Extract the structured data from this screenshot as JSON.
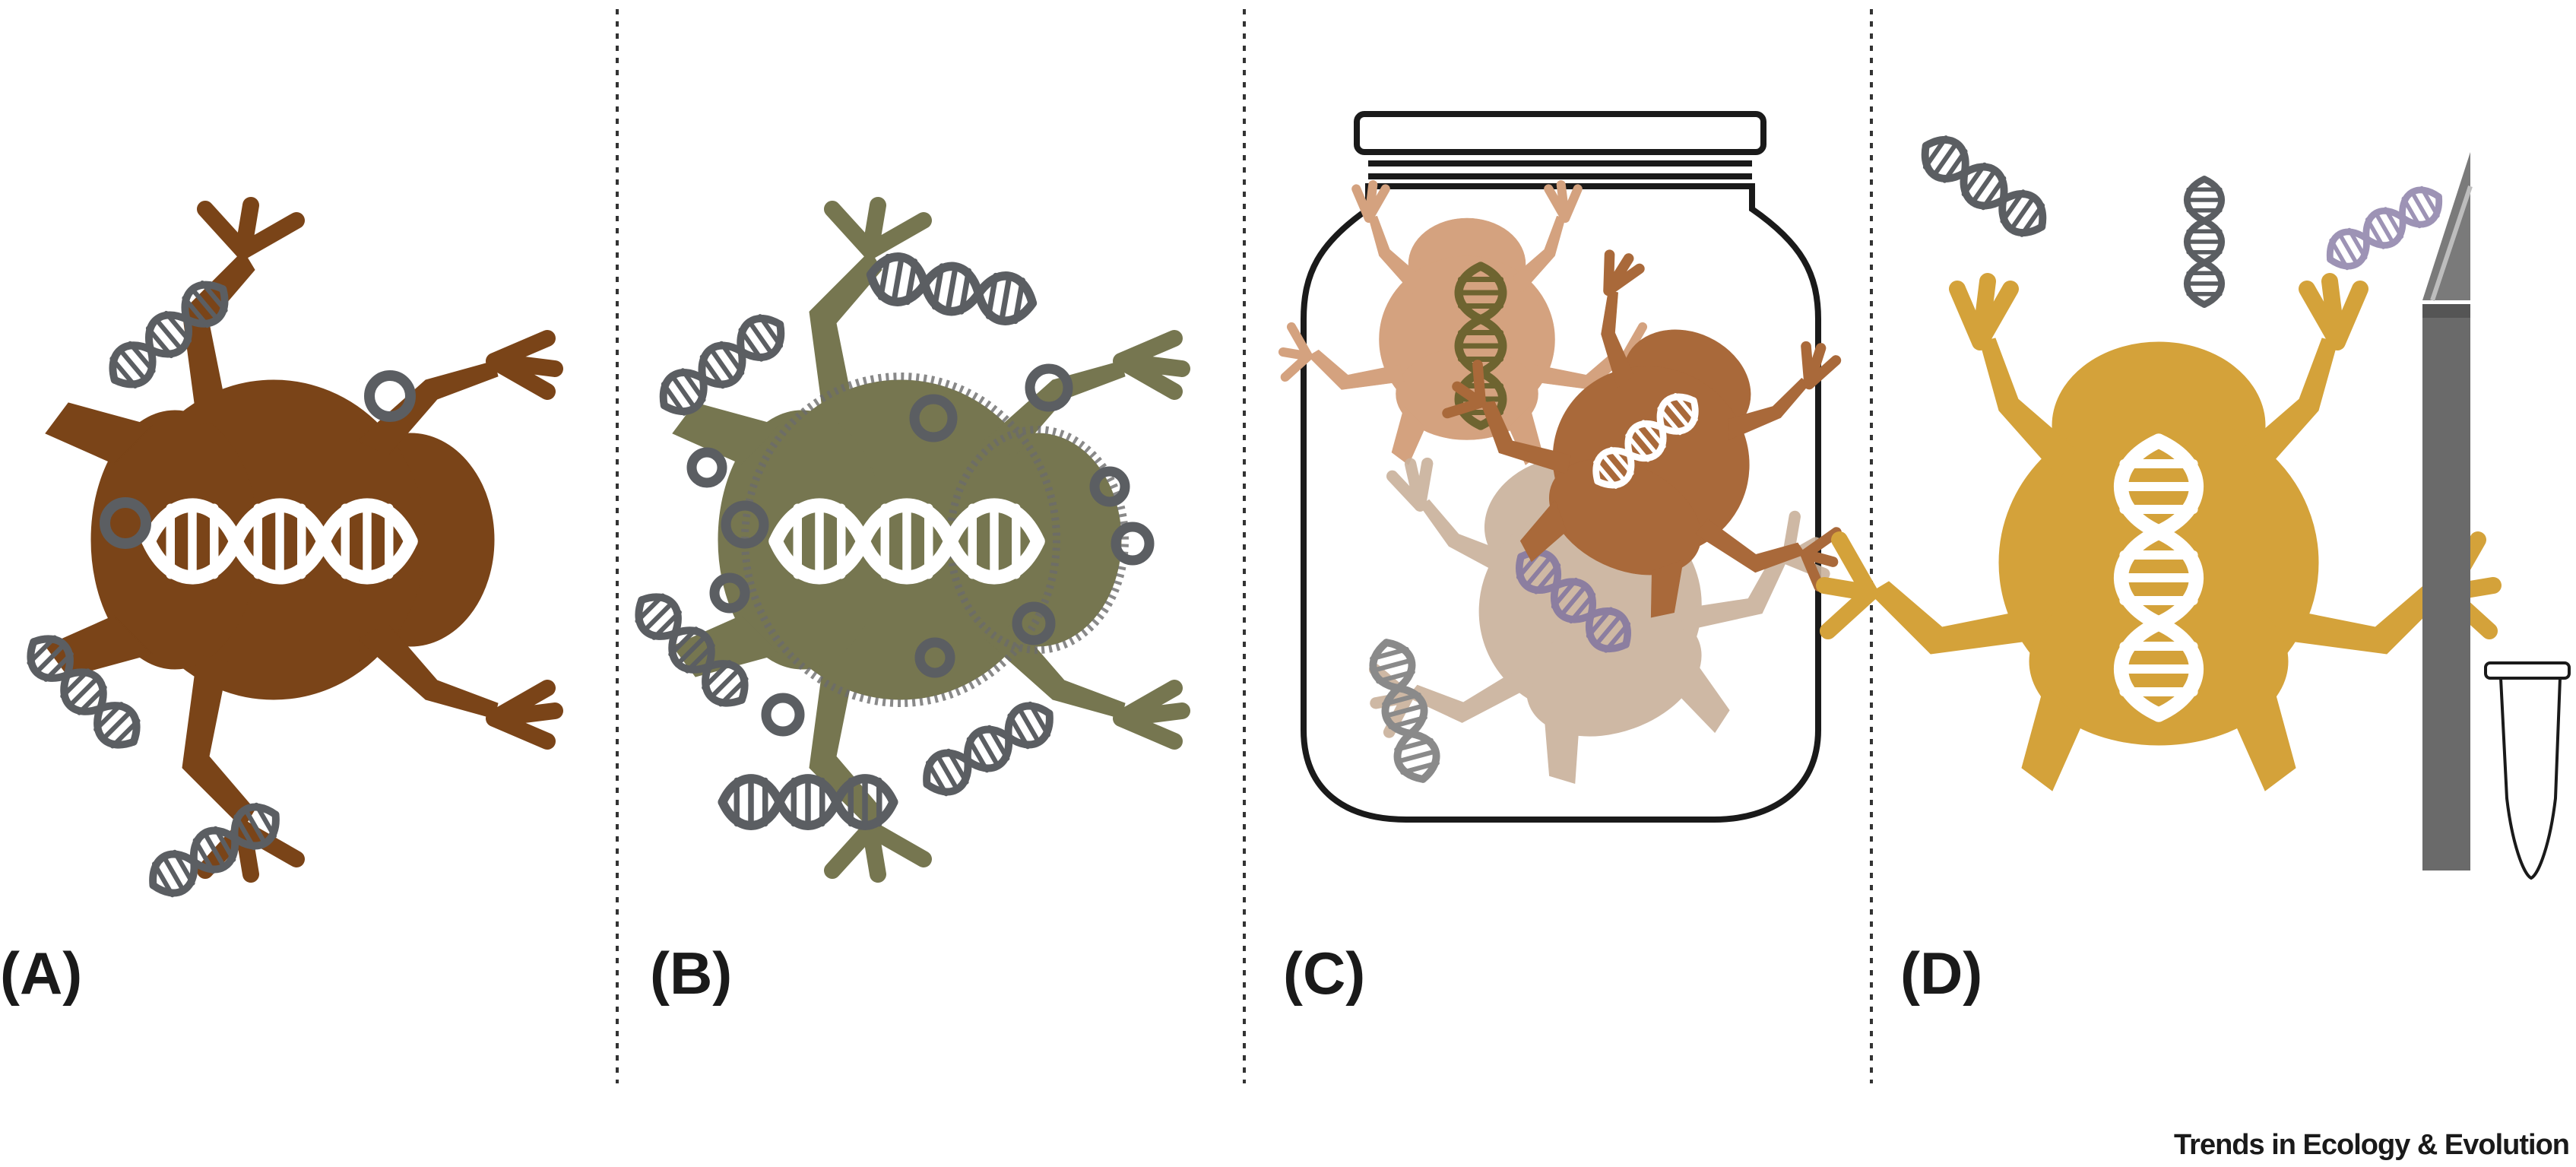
{
  "panels": [
    {
      "label": "(A)",
      "frog_color": "#7a4418"
    },
    {
      "label": "(B)",
      "frog_color": "#767650"
    },
    {
      "label": "(C)",
      "frog_colors": [
        "#d4a27f",
        "#a9693a",
        "#c9b19b"
      ]
    },
    {
      "label": "(D)",
      "frog_color": "#d4a23a"
    }
  ],
  "journal": "Trends in Ecology & Evolution",
  "colors": {
    "dna_grey": "#5b5e62",
    "dna_white": "#ffffff",
    "dna_purple": "#9d93b5",
    "divider": "#333333"
  },
  "icons": [
    "dna-icon",
    "frog-icon",
    "jar-icon",
    "scalpel-icon",
    "tube-icon"
  ]
}
